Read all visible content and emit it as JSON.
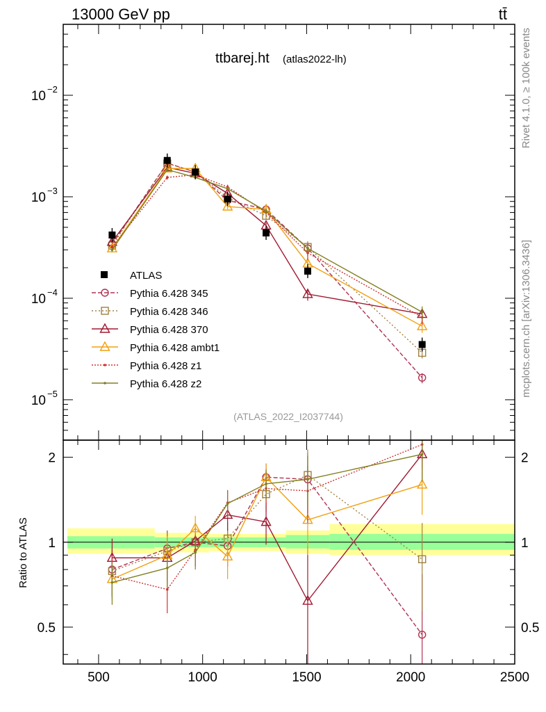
{
  "header": {
    "left": "13000 GeV pp",
    "right": "tt̄",
    "side_top": "Rivet 4.1.0, ≥ 100k events",
    "side_bottom": "mcplots.cern.ch [arXiv:1306.3436]"
  },
  "chart_data": {
    "type": "line",
    "title": "ttbarej.ht",
    "subtitle": "(atlas2022-lh)",
    "watermark": "(ATLAS_2022_I2037744)",
    "xlim": [
      330,
      2500
    ],
    "x_ticks": [
      "500",
      "1000",
      "1500",
      "2000",
      "2500"
    ],
    "yscale": "log",
    "ylim": [
      4e-06,
      0.05
    ],
    "y_ticks": [
      "10^-5",
      "10^-4",
      "10^-3",
      "10^-2"
    ],
    "ratio_ylabel": "Ratio to ATLAS",
    "ratio_ylim": [
      0.37,
      2.3
    ],
    "ratio_ticks": [
      "0.5",
      "1",
      "2"
    ],
    "bins": [
      {
        "lo": 350,
        "hi": 770,
        "x": 565
      },
      {
        "lo": 770,
        "hi": 900,
        "x": 830
      },
      {
        "lo": 900,
        "hi": 1030,
        "x": 965
      },
      {
        "lo": 1030,
        "hi": 1200,
        "x": 1120
      },
      {
        "lo": 1200,
        "hi": 1400,
        "x": 1305
      },
      {
        "lo": 1400,
        "hi": 1610,
        "x": 1505
      },
      {
        "lo": 1610,
        "hi": 2500,
        "x": 2055
      }
    ],
    "data": {
      "name": "ATLAS",
      "values": [
        0.00042,
        0.00228,
        0.00175,
        0.00095,
        0.00044,
        0.000185,
        3.5e-05
      ],
      "band_inner": [
        [
          0.95,
          1.05
        ],
        [
          0.96,
          1.04
        ],
        [
          0.96,
          1.04
        ],
        [
          0.96,
          1.04
        ],
        [
          0.96,
          1.04
        ],
        [
          0.95,
          1.06
        ],
        [
          0.94,
          1.07
        ]
      ],
      "band_outer": [
        [
          0.91,
          1.12
        ],
        [
          0.92,
          1.08
        ],
        [
          0.92,
          1.08
        ],
        [
          0.93,
          1.07
        ],
        [
          0.93,
          1.07
        ],
        [
          0.91,
          1.1
        ],
        [
          0.9,
          1.16
        ]
      ]
    },
    "series": [
      {
        "name": "Pythia 6.428 345",
        "color": "#b03050",
        "dash": "6,3",
        "marker": "circle",
        "values": [
          0.00034,
          0.00215,
          0.00175,
          0.00092,
          0.00075,
          0.00031,
          1.65e-05
        ],
        "ratio": [
          0.8,
          0.95,
          1.0,
          0.97,
          1.7,
          1.67,
          0.47
        ],
        "ratio_err": [
          0.15,
          0.15,
          0.12,
          0.15,
          0.2,
          0.4,
          0.3
        ]
      },
      {
        "name": "Pythia 6.428 346",
        "color": "#a08040",
        "dash": "2,3",
        "marker": "square",
        "values": [
          0.00033,
          0.00213,
          0.00175,
          0.00098,
          0.00065,
          0.00032,
          2.9e-05
        ],
        "ratio": [
          0.79,
          0.93,
          1.0,
          1.03,
          1.48,
          1.73,
          0.87
        ],
        "ratio_err": [
          0.15,
          0.15,
          0.12,
          0.15,
          0.2,
          0.4,
          0.3
        ]
      },
      {
        "name": "Pythia 6.428 370",
        "color": "#a01830",
        "dash": "",
        "marker": "triangle",
        "values": [
          0.00036,
          0.00195,
          0.0017,
          0.00108,
          0.00052,
          0.00011,
          7e-05
        ],
        "ratio": [
          0.88,
          0.88,
          1.01,
          1.25,
          1.18,
          0.62,
          2.05
        ],
        "ratio_err": [
          0.15,
          0.15,
          0.12,
          0.15,
          0.2,
          0.35,
          0.4
        ]
      },
      {
        "name": "Pythia 6.428 ambt1",
        "color": "#f0a010",
        "dash": "",
        "marker": "triangle",
        "values": [
          0.00031,
          0.0019,
          0.0019,
          0.0008,
          0.00075,
          0.00022,
          5.3e-05
        ],
        "ratio": [
          0.74,
          0.9,
          1.12,
          0.89,
          1.7,
          1.2,
          1.6
        ],
        "ratio_err": [
          0.12,
          0.15,
          0.12,
          0.15,
          0.2,
          0.3,
          0.35
        ]
      },
      {
        "name": "Pythia 6.428 z1",
        "color": "#d03030",
        "dash": "2,2",
        "marker": "dot",
        "values": [
          0.00032,
          0.00155,
          0.00165,
          0.00125,
          0.0007,
          0.00028,
          6.5e-05
        ],
        "ratio": [
          0.76,
          0.68,
          0.94,
          1.38,
          1.55,
          1.52,
          2.22
        ],
        "ratio_err": [
          0.12,
          0.12,
          0.12,
          0.15,
          0.2,
          0.35,
          0.4
        ]
      },
      {
        "name": "Pythia 6.428 z2",
        "color": "#808020",
        "dash": "",
        "marker": "dot",
        "values": [
          0.0003,
          0.00185,
          0.00155,
          0.0012,
          0.00072,
          0.00031,
          7.3e-05
        ],
        "ratio": [
          0.72,
          0.81,
          0.92,
          1.37,
          1.61,
          1.67,
          2.05
        ],
        "ratio_err": [
          0.12,
          0.12,
          0.12,
          0.15,
          0.2,
          0.35,
          0.4
        ]
      }
    ]
  }
}
